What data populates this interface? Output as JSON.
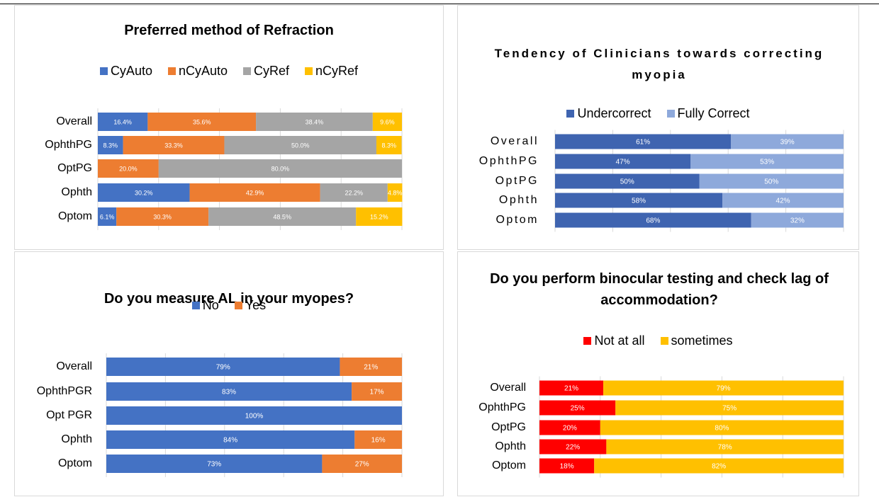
{
  "chart_data": [
    {
      "type": "stacked-bar",
      "title": "Preferred method of Refraction",
      "categories": [
        "Overall",
        "OphthPG",
        "OptPG",
        "Ophth",
        "Optom"
      ],
      "xlim": [
        0,
        100
      ],
      "xticks": [
        0,
        20,
        40,
        60,
        80,
        100
      ],
      "grid": true,
      "series": [
        {
          "name": "CyAuto",
          "color": "#4472c4",
          "values": [
            16.4,
            8.3,
            null,
            30.2,
            6.1
          ],
          "value_labels": [
            "16.4%",
            "8.3%",
            null,
            "30.2%",
            "6.1%"
          ]
        },
        {
          "name": "nCyAuto",
          "color": "#ed7d31",
          "values": [
            35.6,
            33.3,
            20.0,
            42.9,
            30.3
          ],
          "value_labels": [
            "35.6%",
            "33.3%",
            "20.0%",
            "42.9%",
            "30.3%"
          ]
        },
        {
          "name": "CyRef",
          "color": "#a5a5a5",
          "values": [
            38.4,
            50.0,
            80.0,
            22.2,
            48.5
          ],
          "value_labels": [
            "38.4%",
            "50.0%",
            "80.0%",
            "22.2%",
            "48.5%"
          ]
        },
        {
          "name": "nCyRef",
          "color": "#ffc000",
          "values": [
            9.6,
            8.3,
            null,
            4.8,
            15.2
          ],
          "value_labels": [
            "9.6%",
            "8.3%",
            null,
            "4.8%",
            "15.2%"
          ]
        }
      ]
    },
    {
      "type": "stacked-bar",
      "title": "Tendency of Clinicians towards correcting myopia",
      "categories": [
        "Overall",
        "OphthPG",
        "OptPG",
        "Ophth",
        "Optom"
      ],
      "xlim": [
        0,
        100
      ],
      "xticks": [
        0,
        20,
        40,
        60,
        80,
        100
      ],
      "grid": true,
      "series": [
        {
          "name": "Undercorrect",
          "color": "#3f64b0",
          "values": [
            61,
            47,
            50,
            58,
            68
          ],
          "value_labels": [
            "61%",
            "47%",
            "50%",
            "58%",
            "68%"
          ]
        },
        {
          "name": "Fully Correct",
          "color": "#8ea9db",
          "values": [
            39,
            53,
            50,
            42,
            32
          ],
          "value_labels": [
            "39%",
            "53%",
            "50%",
            "42%",
            "32%"
          ]
        }
      ]
    },
    {
      "type": "stacked-bar",
      "title": "Do you measure AL in your myopes?",
      "categories": [
        "Overall",
        "OphthPGR",
        "Opt PGR",
        "Ophth",
        "Optom"
      ],
      "xlim": [
        0,
        100
      ],
      "xticks": [
        0,
        20,
        40,
        60,
        80,
        100
      ],
      "grid": true,
      "series": [
        {
          "name": "No",
          "color": "#4472c4",
          "values": [
            79,
            83,
            100,
            84,
            73
          ],
          "value_labels": [
            "79%",
            "83%",
            "100%",
            "84%",
            "73%"
          ]
        },
        {
          "name": "Yes",
          "color": "#ed7d31",
          "values": [
            21,
            17,
            null,
            16,
            27
          ],
          "value_labels": [
            "21%",
            "17%",
            null,
            "16%",
            "27%"
          ]
        }
      ]
    },
    {
      "type": "stacked-bar",
      "title": "Do you perform binocular testing and check lag of accommodation?",
      "categories": [
        "Overall",
        "OphthPG",
        "OptPG",
        "Ophth",
        "Optom"
      ],
      "xlim": [
        0,
        100
      ],
      "xticks": [
        0,
        20,
        40,
        60,
        80,
        100
      ],
      "grid": true,
      "series": [
        {
          "name": "Not at all",
          "color": "#ff0000",
          "values": [
            21,
            25,
            20,
            22,
            18
          ],
          "value_labels": [
            "21%",
            "25%",
            "20%",
            "22%",
            "18%"
          ]
        },
        {
          "name": "sometimes",
          "color": "#ffc000",
          "values": [
            79,
            75,
            80,
            78,
            82
          ],
          "value_labels": [
            "79%",
            "75%",
            "80%",
            "78%",
            "82%"
          ]
        }
      ]
    }
  ]
}
